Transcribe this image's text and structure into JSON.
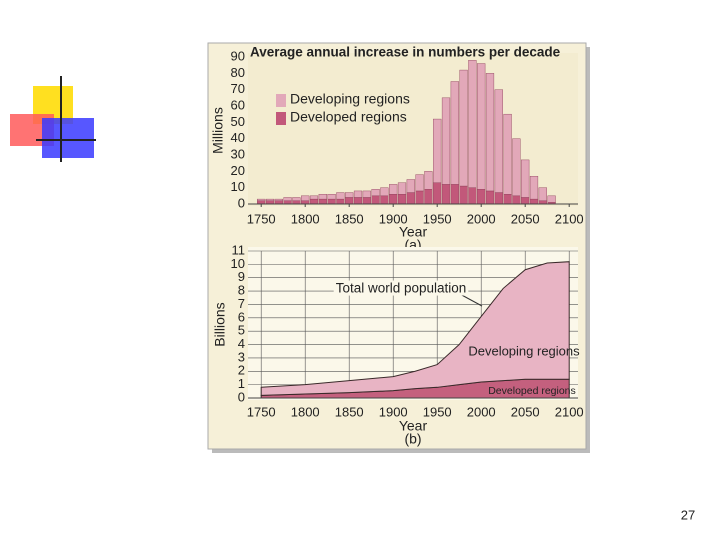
{
  "chart_data": [
    {
      "type": "bar",
      "stacked": true,
      "title": "Average annual increase in numbers per decade",
      "x_label": "Year",
      "panel": "(a)",
      "y_label": "Millions",
      "x": [
        1750,
        1760,
        1770,
        1780,
        1790,
        1800,
        1810,
        1820,
        1830,
        1840,
        1850,
        1860,
        1870,
        1880,
        1890,
        1900,
        1910,
        1920,
        1930,
        1940,
        1950,
        1960,
        1970,
        1980,
        1990,
        2000,
        2010,
        2020,
        2030,
        2040,
        2050,
        2060,
        2070,
        2080
      ],
      "series": [
        {
          "name": "Developed regions",
          "color": "#c2587a",
          "values": [
            2,
            2,
            2,
            2,
            2,
            2,
            3,
            3,
            3,
            3,
            4,
            4,
            4,
            5,
            5,
            6,
            6,
            7,
            8,
            9,
            13,
            12,
            12,
            11,
            10,
            9,
            8,
            7,
            6,
            5,
            4,
            3,
            2,
            1
          ]
        },
        {
          "name": "Developing regions",
          "color": "#e2a8b9",
          "values": [
            1,
            1,
            1,
            2,
            2,
            3,
            2,
            3,
            3,
            4,
            3,
            4,
            4,
            4,
            5,
            6,
            7,
            8,
            10,
            11,
            39,
            53,
            63,
            71,
            78,
            77,
            72,
            63,
            49,
            35,
            23,
            14,
            8,
            4
          ]
        }
      ],
      "xlim": [
        1735,
        2110
      ],
      "xticks": [
        1750,
        1800,
        1850,
        1900,
        1950,
        2000,
        2050,
        2100
      ],
      "ylim": [
        0,
        90
      ],
      "yticks": [
        0,
        10,
        20,
        30,
        40,
        50,
        60,
        70,
        80,
        90
      ],
      "legend": "upper-left",
      "grid": false
    },
    {
      "type": "area",
      "stacked": true,
      "x_label": "Year",
      "panel": "(b)",
      "y_label": "Billions",
      "annotation": "Total world population",
      "x": [
        1750,
        1800,
        1850,
        1900,
        1925,
        1950,
        1975,
        2000,
        2025,
        2050,
        2075,
        2100
      ],
      "series": [
        {
          "name": "Developed regions",
          "color": "#c4607e",
          "values": [
            0.2,
            0.3,
            0.4,
            0.55,
            0.7,
            0.8,
            1.0,
            1.2,
            1.3,
            1.4,
            1.4,
            1.4
          ]
        },
        {
          "name": "Developing regions",
          "color": "#e8b4c4",
          "values": [
            0.6,
            0.7,
            0.9,
            1.05,
            1.3,
            1.7,
            3.0,
            4.9,
            6.9,
            8.2,
            8.7,
            8.8
          ]
        }
      ],
      "xlim": [
        1735,
        2110
      ],
      "xticks": [
        1750,
        1800,
        1850,
        1900,
        1950,
        2000,
        2050,
        2100
      ],
      "ylim": [
        0,
        11
      ],
      "yticks": [
        0,
        1,
        2,
        3,
        4,
        5,
        6,
        7,
        8,
        9,
        10,
        11
      ],
      "legend": "inline",
      "grid": true
    }
  ],
  "slide_number": 27
}
